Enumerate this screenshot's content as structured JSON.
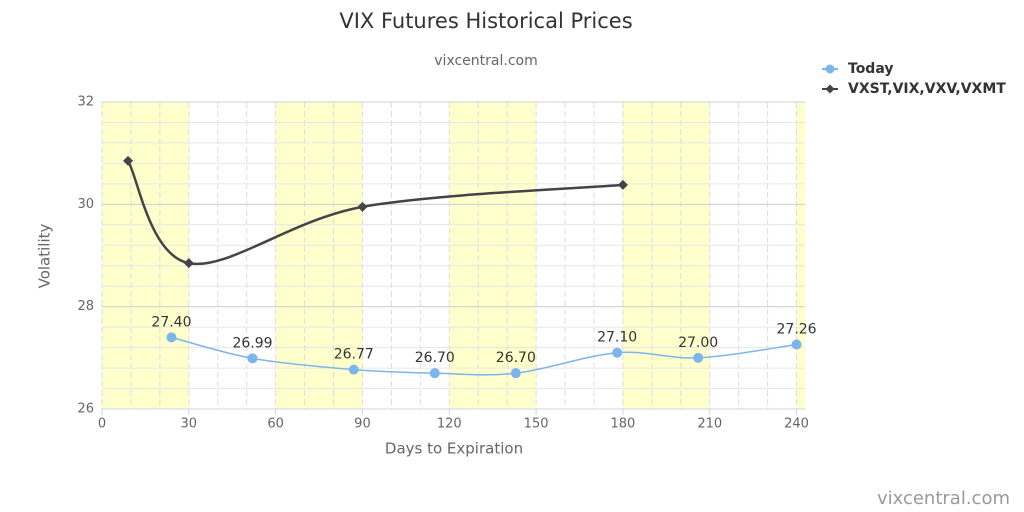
{
  "chart_data": {
    "type": "line",
    "title": "VIX Futures Historical Prices",
    "subtitle": "vixcentral.com",
    "x_label": "Days to Expiration",
    "y_label": "Volatility",
    "credit": "vixcentral.com",
    "xlim": [
      0,
      243
    ],
    "ylim": [
      26,
      32
    ],
    "xticks": [
      0,
      30,
      60,
      90,
      120,
      150,
      180,
      210,
      240
    ],
    "yticks": [
      26,
      28,
      30,
      32
    ],
    "x_minor_tick_interval": 10,
    "y_minor_tick_interval": 0.4,
    "plot_bands": [
      [
        0,
        30
      ],
      [
        60,
        90
      ],
      [
        120,
        150
      ],
      [
        180,
        210
      ],
      [
        240,
        270
      ]
    ],
    "plot_band_color": "#ffffcc",
    "grid": true,
    "legend": "top-right",
    "series": [
      {
        "name": "Today",
        "color": "#7cb5ec",
        "marker": "circle",
        "x": [
          24,
          52,
          87,
          115,
          143,
          178,
          206,
          240
        ],
        "values": [
          27.4,
          26.99,
          26.77,
          26.7,
          26.7,
          27.1,
          27.0,
          27.26
        ],
        "value_labels": [
          "27.40",
          "26.99",
          "26.77",
          "26.70",
          "26.70",
          "27.10",
          "27.00",
          "27.26"
        ]
      },
      {
        "name": "VXST,VIX,VXV,VXMT",
        "color": "#434348",
        "marker": "diamond",
        "x": [
          9,
          30,
          90,
          180
        ],
        "values": [
          30.85,
          28.85,
          29.95,
          30.38
        ]
      }
    ]
  }
}
